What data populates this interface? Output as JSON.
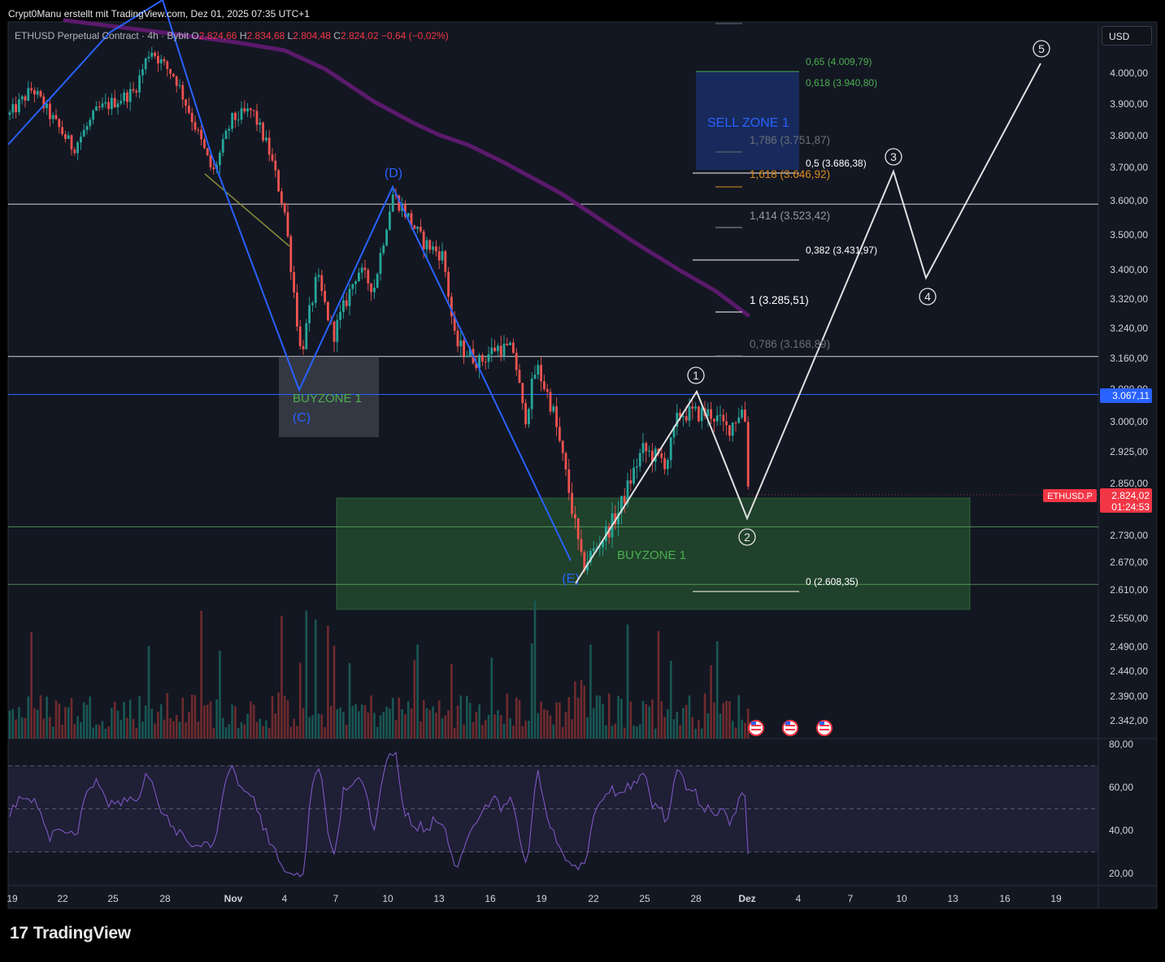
{
  "header": {
    "credit": "Crypt0Manu erstellt mit TradingView.com, Dez 01, 2025 07:35 UTC+1",
    "symbol": "ETHUSD Perpetual Contract · 4h · Bybit",
    "o_label": "O",
    "o_value": "2.824,66",
    "h_label": "H",
    "h_value": "2.834,68",
    "l_label": "L",
    "l_value": "2.804,48",
    "c_label": "C",
    "c_value": "2.824,02",
    "change": "−0,64 (−0,02%)"
  },
  "currency_button": "USD",
  "brand": "TradingView",
  "colors": {
    "background": "#131722",
    "up": "#26a69a",
    "down": "#ef5350",
    "blue_wave": "#2962ff",
    "white_wave": "#e0e0e0",
    "ma": "#5b1a6b",
    "buyzone_green": "#2e5a30",
    "sellzone_blue": "#1a2d5a",
    "rsi_line": "#7e57c2",
    "price_badge": "#f23645",
    "level_badge": "#2962ff"
  },
  "chart_data": {
    "type": "candlestick",
    "symbol": "ETHUSD.P",
    "timeframe": "4h",
    "y_ticks": [
      "4.000,00",
      "3.900,00",
      "3.800,00",
      "3.700,00",
      "3.600,00",
      "3.500,00",
      "3.400,00",
      "3.320,00",
      "3.240,00",
      "3.160,00",
      "3.080,00",
      "3.000,00",
      "2.925,00",
      "2.850,00",
      "2.730,00",
      "2.670,00",
      "2.610,00",
      "2.550,00",
      "2.490,00",
      "2.440,00",
      "2.390,00",
      "2.342,00"
    ],
    "x_ticks": [
      "19",
      "22",
      "25",
      "28",
      "Nov",
      "4",
      "7",
      "10",
      "13",
      "16",
      "19",
      "22",
      "25",
      "28",
      "Dez",
      "4",
      "7",
      "10",
      "13",
      "16",
      "19"
    ],
    "rsi_ticks": [
      "80,00",
      "60,00",
      "40,00",
      "20,00"
    ],
    "current_price": {
      "symbol_label": "ETHUSD.P",
      "price": "2.824,02",
      "countdown": "01:24:53"
    },
    "blue_level": "3.067,11",
    "horizontal_levels": [
      3590,
      3165,
      2750,
      2622
    ],
    "fib_levels": [
      {
        "label": "0,65 (4.009,79)",
        "price": 4009.79,
        "color": "#4caf50"
      },
      {
        "label": "0,618 (3.940,80)",
        "price": 3940.8,
        "color": "#4caf50"
      },
      {
        "label": "1,786 (3.751,87)",
        "price": 3751.87,
        "color": "#6b6f78"
      },
      {
        "label": "0,5 (3.686,38)",
        "price": 3686.38,
        "color": "#ffffff"
      },
      {
        "label": "1,618 (3.646,92)",
        "price": 3646.92,
        "color": "#d98c1f"
      },
      {
        "label": "1,414 (3.523,42)",
        "price": 3523.42,
        "color": "#9598a1"
      },
      {
        "label": "0,382 (3.431,97)",
        "price": 3431.97,
        "color": "#ffffff"
      },
      {
        "label": "1 (3.285,51)",
        "price": 3285.51,
        "color": "#ffffff"
      },
      {
        "label": "0,786 (3.168,89)",
        "price": 3168.89,
        "color": "#6b6f78"
      },
      {
        "label": "0 (2.608,35)",
        "price": 2608.35,
        "color": "#ffffff"
      }
    ],
    "zones": [
      {
        "label": "SELL ZONE 1",
        "kind": "sell"
      },
      {
        "label": "BUYZONE 1",
        "kind": "buy-small"
      },
      {
        "label": "BUYZONE 1",
        "kind": "buy-large"
      }
    ],
    "wave_labels_blue": [
      "(D)",
      "(C)",
      "(E)"
    ],
    "wave_labels_white": [
      "1",
      "2",
      "3",
      "4",
      "5"
    ],
    "rsi_bands": [
      70,
      50,
      30
    ]
  }
}
